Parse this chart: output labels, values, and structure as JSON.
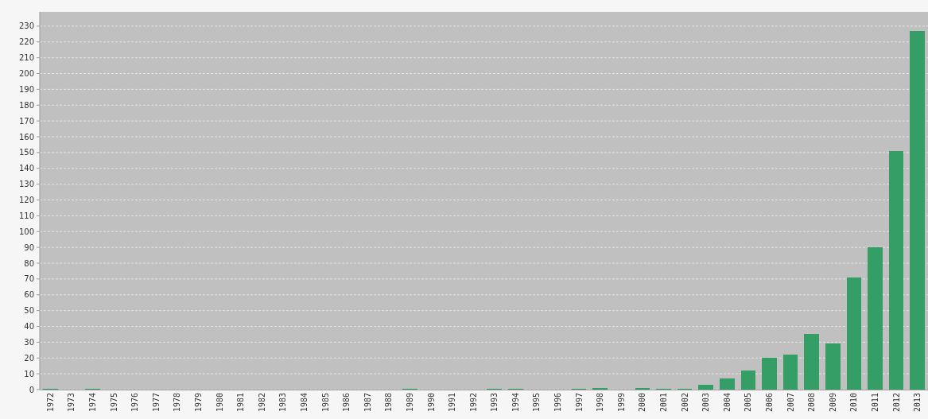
{
  "chart_data": {
    "type": "bar",
    "categories": [
      "1972",
      "1973",
      "1974",
      "1975",
      "1976",
      "1977",
      "1978",
      "1979",
      "1980",
      "1981",
      "1982",
      "1983",
      "1984",
      "1985",
      "1986",
      "1987",
      "1988",
      "1989",
      "1990",
      "1991",
      "1992",
      "1993",
      "1994",
      "1995",
      "1996",
      "1997",
      "1998",
      "1999",
      "2000",
      "2001",
      "2002",
      "2003",
      "2004",
      "2005",
      "2006",
      "2007",
      "2008",
      "2009",
      "2010",
      "2011",
      "2012",
      "2013"
    ],
    "values": [
      0.3,
      0,
      0.3,
      0,
      0,
      0,
      0,
      0,
      0,
      0,
      0,
      0,
      0,
      0,
      0,
      0,
      0,
      0.3,
      0,
      0,
      0,
      0.3,
      0.3,
      0,
      0,
      0.3,
      1,
      0,
      1,
      0.3,
      0.3,
      3,
      7,
      12,
      20,
      22,
      35,
      29,
      71,
      90,
      151,
      227
    ],
    "color": "#359e67",
    "ylim": [
      0,
      239
    ],
    "yticks": [
      0,
      10,
      20,
      30,
      40,
      50,
      60,
      70,
      80,
      90,
      100,
      110,
      120,
      130,
      140,
      150,
      160,
      170,
      180,
      190,
      200,
      210,
      220,
      230
    ],
    "grid": "y"
  }
}
